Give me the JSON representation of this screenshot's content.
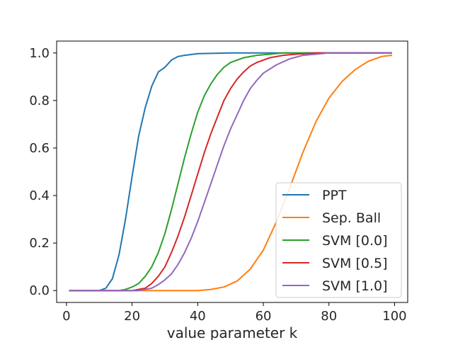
{
  "chart_data": {
    "type": "line",
    "title": "",
    "xlabel": "value parameter k",
    "ylabel": "",
    "xlim": [
      -3,
      104
    ],
    "ylim": [
      -0.05,
      1.05
    ],
    "xticks": [
      0,
      20,
      40,
      60,
      80,
      100
    ],
    "yticks": [
      0.0,
      0.2,
      0.4,
      0.6,
      0.8,
      1.0
    ],
    "xtick_labels": [
      "0",
      "20",
      "40",
      "60",
      "80",
      "100"
    ],
    "ytick_labels": [
      "0.0",
      "0.2",
      "0.4",
      "0.6",
      "0.8",
      "1.0"
    ],
    "grid": false,
    "legend_position": "lower-right",
    "series": [
      {
        "name": "PPT",
        "color": "#1f77b4",
        "x": [
          1,
          10,
          12,
          14,
          16,
          18,
          20,
          22,
          24,
          26,
          28,
          30,
          32,
          34,
          36,
          40,
          50,
          99
        ],
        "y": [
          0.0,
          0.0,
          0.01,
          0.05,
          0.15,
          0.3,
          0.48,
          0.65,
          0.77,
          0.86,
          0.92,
          0.94,
          0.97,
          0.985,
          0.99,
          0.997,
          1.0,
          1.0
        ]
      },
      {
        "name": "Sep. Ball",
        "color": "#ff7f0e",
        "x": [
          1,
          30,
          40,
          44,
          48,
          52,
          56,
          60,
          64,
          68,
          72,
          76,
          80,
          84,
          88,
          92,
          96,
          99
        ],
        "y": [
          0.0,
          0.0,
          0.0,
          0.005,
          0.015,
          0.04,
          0.09,
          0.17,
          0.29,
          0.43,
          0.58,
          0.71,
          0.81,
          0.88,
          0.93,
          0.965,
          0.985,
          0.99
        ]
      },
      {
        "name": "SVM [0.0]",
        "color": "#2ca02c",
        "x": [
          1,
          16,
          18,
          20,
          22,
          24,
          26,
          28,
          30,
          32,
          34,
          36,
          38,
          40,
          42,
          44,
          46,
          48,
          50,
          54,
          58,
          62,
          66,
          70,
          99
        ],
        "y": [
          0.0,
          0.0,
          0.005,
          0.015,
          0.03,
          0.06,
          0.1,
          0.16,
          0.24,
          0.34,
          0.45,
          0.56,
          0.66,
          0.75,
          0.82,
          0.87,
          0.91,
          0.94,
          0.96,
          0.98,
          0.99,
          0.995,
          1.0,
          1.0,
          1.0
        ]
      },
      {
        "name": "SVM [0.5]",
        "color": "#d62728",
        "x": [
          1,
          20,
          24,
          26,
          28,
          30,
          32,
          34,
          36,
          38,
          40,
          42,
          44,
          46,
          48,
          50,
          52,
          54,
          56,
          58,
          62,
          66,
          70,
          76,
          99
        ],
        "y": [
          0.0,
          0.0,
          0.01,
          0.03,
          0.06,
          0.1,
          0.16,
          0.23,
          0.31,
          0.4,
          0.49,
          0.58,
          0.66,
          0.73,
          0.8,
          0.85,
          0.89,
          0.92,
          0.945,
          0.96,
          0.98,
          0.99,
          0.995,
          1.0,
          1.0
        ]
      },
      {
        "name": "SVM [1.0]",
        "color": "#9467bd",
        "x": [
          1,
          22,
          26,
          28,
          30,
          32,
          34,
          36,
          38,
          40,
          42,
          44,
          46,
          48,
          50,
          52,
          54,
          56,
          58,
          60,
          64,
          68,
          72,
          76,
          80,
          99
        ],
        "y": [
          0.0,
          0.0,
          0.01,
          0.025,
          0.045,
          0.07,
          0.11,
          0.16,
          0.22,
          0.29,
          0.37,
          0.45,
          0.53,
          0.61,
          0.68,
          0.74,
          0.8,
          0.85,
          0.885,
          0.915,
          0.95,
          0.975,
          0.99,
          0.995,
          1.0,
          1.0
        ]
      }
    ]
  }
}
